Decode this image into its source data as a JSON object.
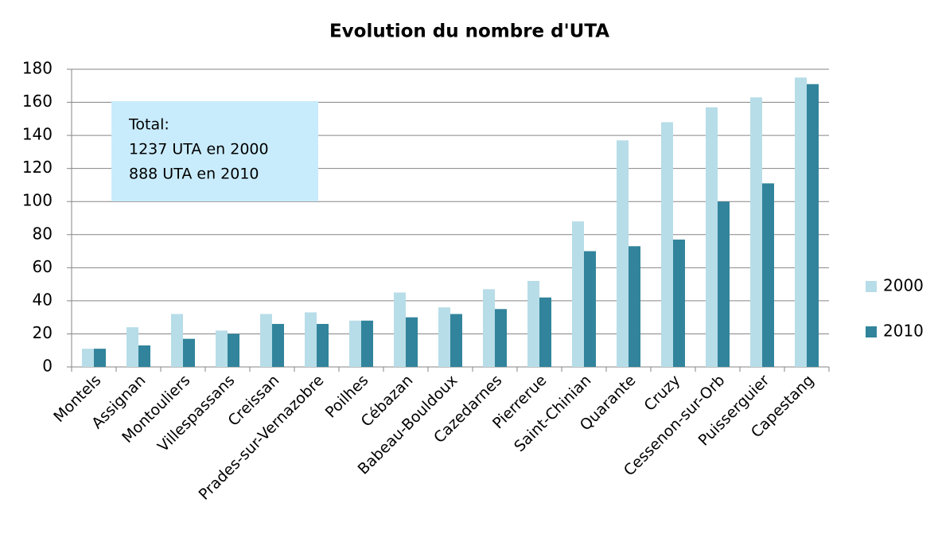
{
  "chart_data": {
    "type": "bar",
    "title": "Evolution du nombre d'UTA",
    "categories": [
      "Montels",
      "Assignan",
      "Montouliers",
      "Villespassans",
      "Creissan",
      "Prades-sur-Vernazobre",
      "Poilhes",
      "Cébazan",
      "Babeau-Bouldoux",
      "Cazedarnes",
      "Pierrerue",
      "Saint-Chinian",
      "Quarante",
      "Cruzy",
      "Cessenon-sur-Orb",
      "Puisserguier",
      "Capestang"
    ],
    "series": [
      {
        "name": "2000",
        "color": "#b7dde8",
        "values": [
          11,
          24,
          32,
          22,
          32,
          33,
          28,
          45,
          36,
          47,
          52,
          88,
          137,
          148,
          157,
          163,
          175
        ]
      },
      {
        "name": "2010",
        "color": "#31849b",
        "values": [
          11,
          13,
          17,
          20,
          26,
          26,
          28,
          30,
          32,
          35,
          42,
          70,
          73,
          77,
          100,
          111,
          171
        ]
      }
    ],
    "ylim": [
      0,
      180
    ],
    "yticks": [
      0,
      20,
      40,
      60,
      80,
      100,
      120,
      140,
      160,
      180
    ],
    "grid": true,
    "legend": "right",
    "annotation": [
      "Total:",
      "1237 UTA en 2000",
      "888 UTA en 2010"
    ]
  }
}
